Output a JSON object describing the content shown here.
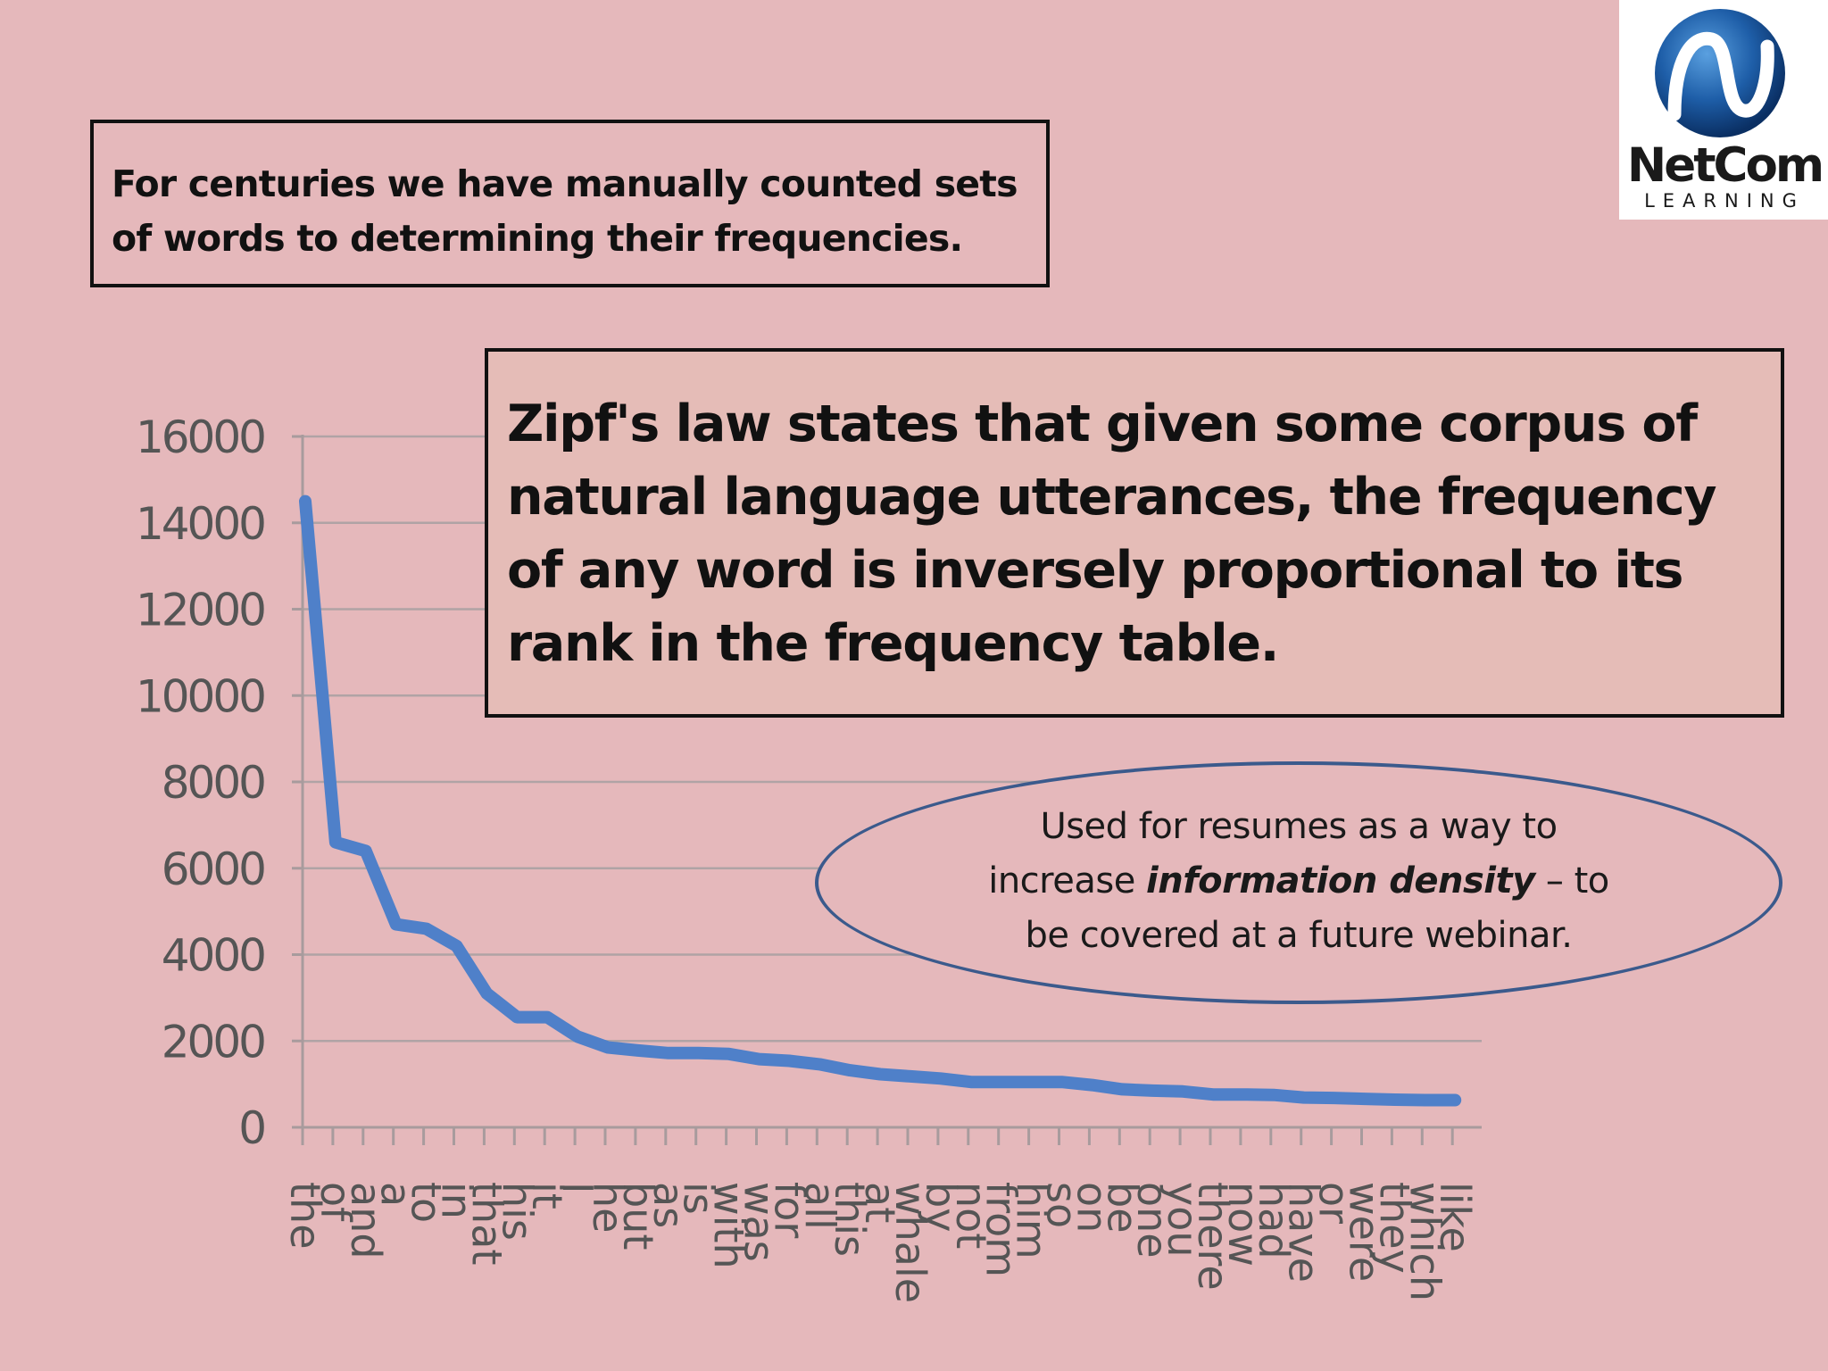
{
  "top_box": {
    "text": "For centuries we have manually counted sets of words to determining their frequencies."
  },
  "zipf_box": {
    "text": "Zipf's law states that given some corpus of natural language utterances, the frequency of any word is inversely proportional to its rank in the frequency table."
  },
  "callout": {
    "line1": "Used for resumes as a way to",
    "line2_pre": "increase ",
    "line2_em": "information density",
    "line2_post": " – to",
    "line3": "be covered at a future webinar."
  },
  "logo": {
    "name": "NetCom",
    "sub": "LEARNING"
  },
  "colors": {
    "background": "#e5b8bb",
    "series": "#4f80c9",
    "callout_border": "#3b5a8c"
  },
  "chart_data": {
    "type": "line",
    "categories": [
      "the",
      "of",
      "and",
      "a",
      "to",
      "in",
      "that",
      "his",
      "it",
      "I",
      "he",
      "but",
      "as",
      "is",
      "with",
      "was",
      "for",
      "all",
      "this",
      "at",
      "whale",
      "by",
      "not",
      "from",
      "him",
      "so",
      "on",
      "be",
      "one",
      "you",
      "there",
      "now",
      "had",
      "have",
      "or",
      "were",
      "they",
      "which",
      "like"
    ],
    "values": [
      14500,
      6600,
      6400,
      4700,
      4600,
      4200,
      3100,
      2550,
      2550,
      2100,
      1850,
      1780,
      1720,
      1720,
      1700,
      1580,
      1540,
      1460,
      1320,
      1230,
      1180,
      1130,
      1050,
      1050,
      1050,
      1050,
      980,
      880,
      850,
      830,
      760,
      760,
      750,
      690,
      680,
      660,
      640,
      630,
      630
    ],
    "ylim": [
      0,
      16000
    ],
    "yticks": [
      0,
      2000,
      4000,
      6000,
      8000,
      10000,
      12000,
      14000,
      16000
    ],
    "grid": true,
    "title": "",
    "xlabel": "",
    "ylabel": ""
  }
}
